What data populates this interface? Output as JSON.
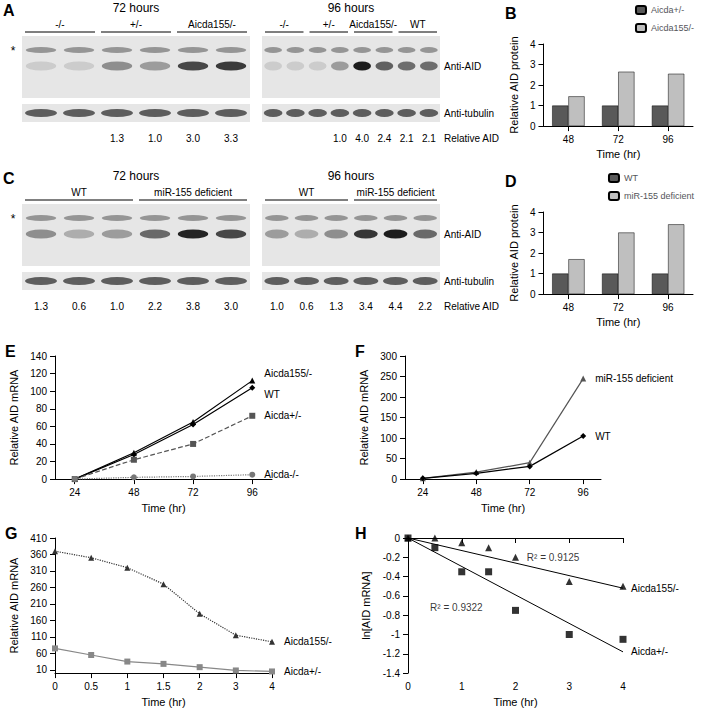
{
  "blots": [
    {
      "panel": "A",
      "labels": {
        "star": "*",
        "aid": "Anti-AID",
        "tubulin": "Anti-tubulin",
        "relative": "Relative AID"
      },
      "left": {
        "title": "72 hours",
        "groups": [
          {
            "label": "-/-",
            "lanes": 2
          },
          {
            "label": "+/-",
            "lanes": 2
          },
          {
            "label": "Aicda155/-",
            "lanes": 2
          }
        ],
        "values": [
          null,
          null,
          1.3,
          1.0,
          3.0,
          3.3
        ],
        "value_labels": [
          null,
          null,
          "1.3",
          "1.0",
          "3.0",
          "3.3"
        ]
      },
      "right": {
        "title": "96 hours",
        "groups": [
          {
            "label": "-/-",
            "lanes": 2
          },
          {
            "label": "+/-",
            "lanes": 2
          },
          {
            "label": "Aicda155/-",
            "lanes": 2
          },
          {
            "label": "WT",
            "lanes": 2
          }
        ],
        "values": [
          null,
          null,
          null,
          1.0,
          4.0,
          2.4,
          2.1,
          2.1
        ],
        "value_labels": [
          null,
          null,
          null,
          "1.0",
          "4.0",
          "2.4",
          "2.1",
          "2.1"
        ]
      }
    },
    {
      "panel": "C",
      "labels": {
        "star": "*",
        "aid": "Anti-AID",
        "tubulin": "Anti-tubulin",
        "relative": "Relative AID"
      },
      "left": {
        "title": "72 hours",
        "groups": [
          {
            "label": "WT",
            "lanes": 3
          },
          {
            "label": "miR-155 deficient",
            "lanes": 3
          }
        ],
        "values": [
          1.3,
          0.6,
          1.0,
          2.2,
          3.8,
          3.0
        ],
        "value_labels": [
          "1.3",
          "0.6",
          "1.0",
          "2.2",
          "3.8",
          "3.0"
        ]
      },
      "right": {
        "title": "96 hours",
        "groups": [
          {
            "label": "WT",
            "lanes": 3
          },
          {
            "label": "miR-155 deficient",
            "lanes": 3
          }
        ],
        "values": [
          1.0,
          0.6,
          1.3,
          3.4,
          4.4,
          2.2
        ],
        "value_labels": [
          "1.0",
          "0.6",
          "1.3",
          "3.4",
          "4.4",
          "2.2"
        ]
      }
    }
  ],
  "chart_data": [
    {
      "title": "B",
      "type": "bar",
      "x_label": "Time (hr)",
      "y_label": "Relative AID protein",
      "categories": [
        48,
        72,
        96
      ],
      "series": [
        {
          "name": "Aicda+/-",
          "color": "#595959",
          "values": [
            1,
            1,
            1
          ]
        },
        {
          "name": "Aicda155/-",
          "color": "#bfbfbf",
          "values": [
            1.45,
            2.65,
            2.55
          ]
        }
      ],
      "ylim": [
        0,
        4
      ],
      "yticks": [
        0,
        1,
        2,
        3,
        4
      ],
      "grid": false,
      "legend": "top-right"
    },
    {
      "title": "D",
      "type": "bar",
      "x_label": "Time (hr)",
      "y_label": "Relative AID protein",
      "categories": [
        48,
        72,
        96
      ],
      "series": [
        {
          "name": "WT",
          "color": "#595959",
          "values": [
            1,
            1,
            1
          ]
        },
        {
          "name": "miR-155 deficient",
          "color": "#bfbfbf",
          "values": [
            1.7,
            3.0,
            3.4
          ]
        }
      ],
      "ylim": [
        0,
        4
      ],
      "yticks": [
        0,
        1,
        2,
        3,
        4
      ],
      "grid": false,
      "legend": "top-right"
    },
    {
      "title": "E",
      "type": "line",
      "x_label": "Time (hr)",
      "y_label": "Relative AID mRNA",
      "x": [
        24,
        48,
        72,
        96
      ],
      "series": [
        {
          "name": "Aicda155/-",
          "color": "#000000",
          "marker": "triangle",
          "line_style": "solid",
          "values": [
            0,
            30,
            65,
            112
          ]
        },
        {
          "name": "WT",
          "color": "#000000",
          "marker": "diamond",
          "line_style": "solid",
          "values": [
            0,
            28,
            62,
            104
          ]
        },
        {
          "name": "Aicda+/-",
          "color": "#555555",
          "marker": "rect",
          "line_style": "dashed",
          "values": [
            0,
            22,
            40,
            72
          ]
        },
        {
          "name": "Aicda-/-",
          "color": "#777777",
          "marker": "circle",
          "line_style": "dotted",
          "values": [
            0,
            2,
            3,
            5
          ]
        }
      ],
      "xlim": [
        16,
        104
      ],
      "xticks": [
        24,
        48,
        72,
        96
      ],
      "ylim": [
        0,
        140
      ],
      "yticks": [
        0,
        20,
        40,
        60,
        80,
        100,
        120,
        140
      ],
      "grid": false
    },
    {
      "title": "F",
      "type": "line",
      "x_label": "Time (hr)",
      "y_label": "Relative AID mRNA",
      "x": [
        24,
        48,
        72,
        96
      ],
      "series": [
        {
          "name": "miR-155 deficient",
          "color": "#555555",
          "marker": "triangle",
          "line_style": "solid",
          "values": [
            2,
            17,
            40,
            245
          ]
        },
        {
          "name": "WT",
          "color": "#000000",
          "marker": "diamond",
          "line_style": "solid",
          "values": [
            2,
            14,
            31,
            105
          ]
        }
      ],
      "xlim": [
        16,
        104
      ],
      "xticks": [
        24,
        48,
        72,
        96
      ],
      "ylim": [
        0,
        300
      ],
      "yticks": [
        0,
        50,
        100,
        150,
        200,
        250,
        300
      ],
      "grid": false
    },
    {
      "title": "G",
      "type": "line",
      "x_label": "Time (hr)",
      "y_label": "Relative AID mRNA",
      "categories": [
        0,
        0.5,
        1,
        1.5,
        2,
        3,
        4
      ],
      "series": [
        {
          "name": "Aicda155/-",
          "color": "#333333",
          "marker": "triangle",
          "line_style": "dotted",
          "values": [
            370,
            350,
            320,
            270,
            180,
            115,
            95
          ]
        },
        {
          "name": "Aicda+/-",
          "color": "#888888",
          "marker": "rect",
          "line_style": "solid",
          "values": [
            75,
            55,
            35,
            28,
            18,
            8,
            5
          ]
        }
      ],
      "ylim": [
        0,
        410
      ],
      "yticks": [
        10,
        60,
        110,
        160,
        210,
        260,
        310,
        360,
        410
      ],
      "grid": false
    },
    {
      "title": "H",
      "type": "scatter",
      "x_label": "Time (hr)",
      "y_label": "ln[AID mRNA]",
      "x": [
        0,
        0.5,
        1,
        1.5,
        2,
        3,
        4
      ],
      "series": [
        {
          "name": "Aicda155/-",
          "color": "#000000",
          "marker": "triangle",
          "values": [
            0,
            0,
            -0.05,
            -0.1,
            -0.2,
            -0.45,
            -0.5
          ],
          "trend": {
            "x": [
              0,
              4
            ],
            "y": [
              0,
              -0.52
            ]
          }
        },
        {
          "name": "Aicda+/-",
          "color": "#000000",
          "marker": "rect",
          "values": [
            0,
            -0.1,
            -0.35,
            -0.35,
            -0.75,
            -1.0,
            -1.05
          ],
          "trend": {
            "x": [
              0,
              4
            ],
            "y": [
              0,
              -1.18
            ]
          }
        }
      ],
      "annotations": [
        {
          "text": "R² = 0.9125",
          "x": 2.7,
          "y": -0.2
        },
        {
          "text": "R² = 0.9322",
          "x": 0.9,
          "y": -0.72
        }
      ],
      "xlim": [
        0,
        4
      ],
      "xticks": [
        0,
        1,
        2,
        3,
        4
      ],
      "ylim": [
        -1.4,
        0
      ],
      "yticks": [
        -1.4,
        -1.2,
        -1,
        -0.8,
        -0.6,
        -0.4,
        -0.2,
        0
      ],
      "grid": false
    }
  ]
}
